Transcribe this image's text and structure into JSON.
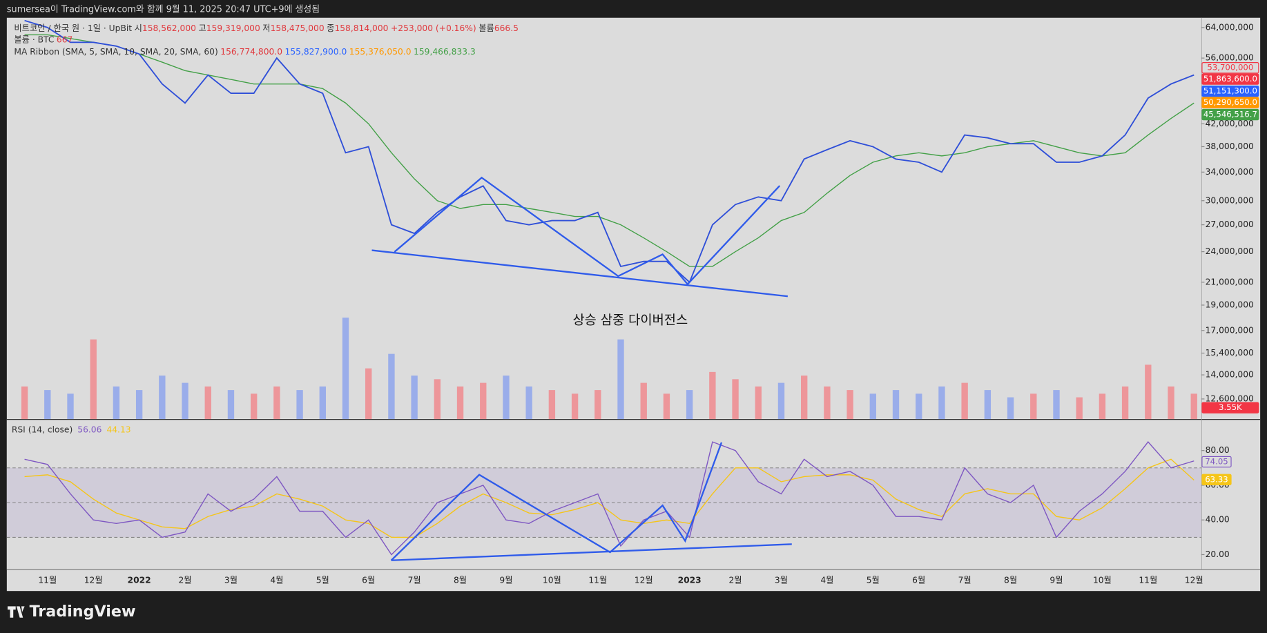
{
  "header": {
    "text": "sumersea이 TradingView.com와 함께 9월 11, 2025 20:47 UTC+9에 생성됨"
  },
  "legend": {
    "symbol": "비트코인 / 한국 원 · 1일 · UpBit",
    "ohlc": [
      {
        "label": "시",
        "value": "158,562,000"
      },
      {
        "label": "고",
        "value": "159,319,000"
      },
      {
        "label": "저",
        "value": "158,475,000"
      },
      {
        "label": "종",
        "value": "158,814,000"
      }
    ],
    "change": "+253,000 (+0.16%)",
    "volume_label": "볼륨",
    "volume_text": "666.5",
    "volume_title": "볼륨 · BTC",
    "volume_value": "667",
    "ma_title": "MA Ribbon (SMA, 5, SMA, 10, SMA, 20, SMA, 60)",
    "ma_values": [
      "156,774,800.0",
      "155,827,900.0",
      "155,376,050.0",
      "159,466,833.3"
    ]
  },
  "chart_data": [
    {
      "type": "line",
      "log_scale": true,
      "categories": [
        null,
        "11월",
        null,
        "12월",
        null,
        "2022",
        null,
        "2월",
        null,
        "3월",
        null,
        "4월",
        null,
        "5월",
        null,
        "6월",
        null,
        "7월",
        null,
        "8월",
        null,
        "9월",
        null,
        "10월",
        null,
        "11월",
        null,
        "12월",
        null,
        "2023",
        null,
        "2월",
        null,
        "3월",
        null,
        "4월",
        null,
        "5월",
        null,
        "6월",
        null,
        "7월",
        null,
        "8월",
        null,
        "9월",
        null,
        "10월",
        null,
        "11월",
        null,
        "12월"
      ],
      "series": [
        {
          "color": "#2f4fd8",
          "values": [
            66000000,
            64000000,
            60000000,
            60000000,
            59000000,
            57000000,
            50000000,
            46000000,
            52000000,
            48000000,
            48000000,
            56000000,
            50000000,
            48000000,
            37000000,
            38000000,
            27000000,
            26000000,
            28500000,
            30500000,
            32000000,
            27500000,
            27000000,
            27500000,
            27500000,
            28500000,
            22500000,
            23000000,
            23000000,
            21000000,
            27000000,
            29500000,
            30500000,
            30000000,
            36000000,
            37500000,
            39000000,
            38000000,
            36000000,
            35500000,
            34000000,
            40000000,
            39500000,
            38500000,
            38500000,
            35500000,
            35500000,
            36500000,
            40000000,
            47000000,
            50000000,
            52000000
          ]
        },
        {
          "color": "#43a047",
          "values": [
            62000000,
            62000000,
            61000000,
            60000000,
            59000000,
            57000000,
            55000000,
            53000000,
            52000000,
            51000000,
            50000000,
            50000000,
            50000000,
            49000000,
            46000000,
            42000000,
            37000000,
            33000000,
            30000000,
            29000000,
            29500000,
            29500000,
            29000000,
            28500000,
            28000000,
            28000000,
            27000000,
            25500000,
            24000000,
            22500000,
            22500000,
            24000000,
            25500000,
            27500000,
            28500000,
            31000000,
            33500000,
            35500000,
            36500000,
            37000000,
            36500000,
            37000000,
            38000000,
            38500000,
            39000000,
            38000000,
            37000000,
            36500000,
            37000000,
            40000000,
            43000000,
            46000000
          ]
        }
      ],
      "volume": {
        "up_color": "#f08a8e",
        "down_color": "#8ea4ec",
        "ylim": [
          0,
          31000
        ],
        "values": [
          9000,
          8000,
          7000,
          22000,
          9000,
          8000,
          12000,
          10000,
          9000,
          8000,
          7000,
          9000,
          8000,
          9000,
          28000,
          14000,
          18000,
          12000,
          11000,
          9000,
          10000,
          12000,
          9000,
          8000,
          7000,
          8000,
          22000,
          10000,
          7000,
          8000,
          13000,
          11000,
          9000,
          10000,
          12000,
          9000,
          8000,
          7000,
          8000,
          7000,
          9000,
          10000,
          8000,
          6000,
          7000,
          8000,
          6000,
          7000,
          9000,
          15000,
          9000,
          7000
        ]
      },
      "ylim": [
        11540000,
        66800000
      ],
      "yticks": [
        {
          "value": 64000000,
          "label": "64,000,000"
        },
        {
          "value": 56000000,
          "label": "56,000,000"
        },
        {
          "value": 42000000,
          "label": "42,000,000"
        },
        {
          "value": 38000000,
          "label": "38,000,000"
        },
        {
          "value": 34000000,
          "label": "34,000,000"
        },
        {
          "value": 30000000,
          "label": "30,000,000"
        },
        {
          "value": 27000000,
          "label": "27,000,000"
        },
        {
          "value": 24000000,
          "label": "24,000,000"
        },
        {
          "value": 21000000,
          "label": "21,000,000"
        },
        {
          "value": 19000000,
          "label": "19,000,000"
        },
        {
          "value": 17000000,
          "label": "17,000,000"
        },
        {
          "value": 15400000,
          "label": "15,400,000"
        },
        {
          "value": 14000000,
          "label": "14,000,000"
        },
        {
          "value": 12600000,
          "label": "12,600,000"
        }
      ],
      "last_value_labels": [
        {
          "label": "53,700,000",
          "color": "#f23645",
          "outline": true
        },
        {
          "label": "51,863,600.0",
          "color": "#f23645",
          "outline": false
        },
        {
          "label": "51,151,300.0",
          "color": "#2962ff",
          "outline": false
        },
        {
          "label": "50,290,650.0",
          "color": "#ff9800",
          "outline": false
        },
        {
          "label": "45,546,516.7",
          "color": "#43a047",
          "outline": false
        },
        {
          "label": "3.55K",
          "color": "#f23645",
          "outline": false
        }
      ],
      "annotation": "상승 삼중 다이버전스"
    },
    {
      "type": "line",
      "title": "RSI (14, close)",
      "legend_values": [
        "56.06",
        "44.13"
      ],
      "series": [
        {
          "color": "#7e57c2",
          "values": [
            75,
            72,
            55,
            40,
            38,
            40,
            30,
            33,
            55,
            45,
            52,
            65,
            45,
            45,
            30,
            40,
            20,
            33,
            50,
            55,
            60,
            40,
            38,
            45,
            50,
            55,
            25,
            40,
            45,
            30,
            85,
            80,
            62,
            55,
            75,
            65,
            68,
            60,
            42,
            42,
            40,
            70,
            55,
            50,
            60,
            30,
            45,
            55,
            68,
            85,
            70,
            74
          ]
        },
        {
          "color": "#f5c518",
          "values": [
            65,
            66,
            62,
            52,
            44,
            40,
            36,
            35,
            42,
            46,
            48,
            55,
            52,
            48,
            40,
            38,
            30,
            30,
            38,
            48,
            55,
            50,
            44,
            43,
            46,
            50,
            40,
            38,
            40,
            38,
            55,
            70,
            70,
            62,
            65,
            66,
            66,
            63,
            52,
            46,
            42,
            55,
            58,
            55,
            55,
            42,
            40,
            47,
            58,
            70,
            75,
            63
          ]
        }
      ],
      "ylim": [
        11.6,
        97.7
      ],
      "yticks": [
        {
          "value": 20,
          "label": "20.00"
        },
        {
          "value": 40,
          "label": "40.00"
        },
        {
          "value": 60,
          "label": "60.00"
        },
        {
          "value": 80,
          "label": "80.00"
        }
      ],
      "bands": [
        70,
        50,
        30
      ],
      "last_value_labels": [
        {
          "label": "74.05",
          "color": "#7e57c2",
          "outline": true
        },
        {
          "label": "63.33",
          "color": "#f5c518",
          "outline": false
        }
      ]
    }
  ],
  "footer": {
    "brand": "TradingView"
  }
}
